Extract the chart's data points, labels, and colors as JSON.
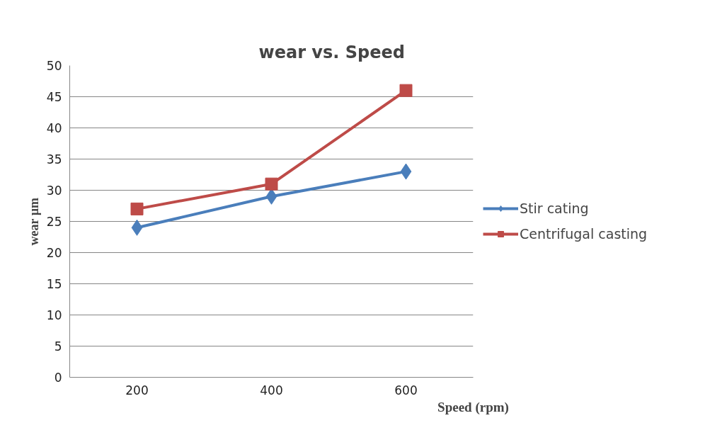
{
  "chart_data": {
    "type": "line",
    "title": "wear vs. Speed",
    "xlabel": "Speed (rpm)",
    "ylabel": "wear µm",
    "categories": [
      "200",
      "400",
      "600"
    ],
    "series": [
      {
        "name": "Stir cating",
        "color": "#4a7ebb",
        "values": [
          24,
          29,
          33
        ],
        "marker": "diamond"
      },
      {
        "name": "Centrifugal casting",
        "color": "#be4b48",
        "values": [
          27,
          31,
          46
        ],
        "marker": "square"
      }
    ],
    "ylim": [
      0,
      50
    ],
    "yticks": [
      0,
      5,
      10,
      15,
      20,
      25,
      30,
      35,
      40,
      45,
      50
    ],
    "grid": "y",
    "legend": "right",
    "line_style": "solid"
  }
}
